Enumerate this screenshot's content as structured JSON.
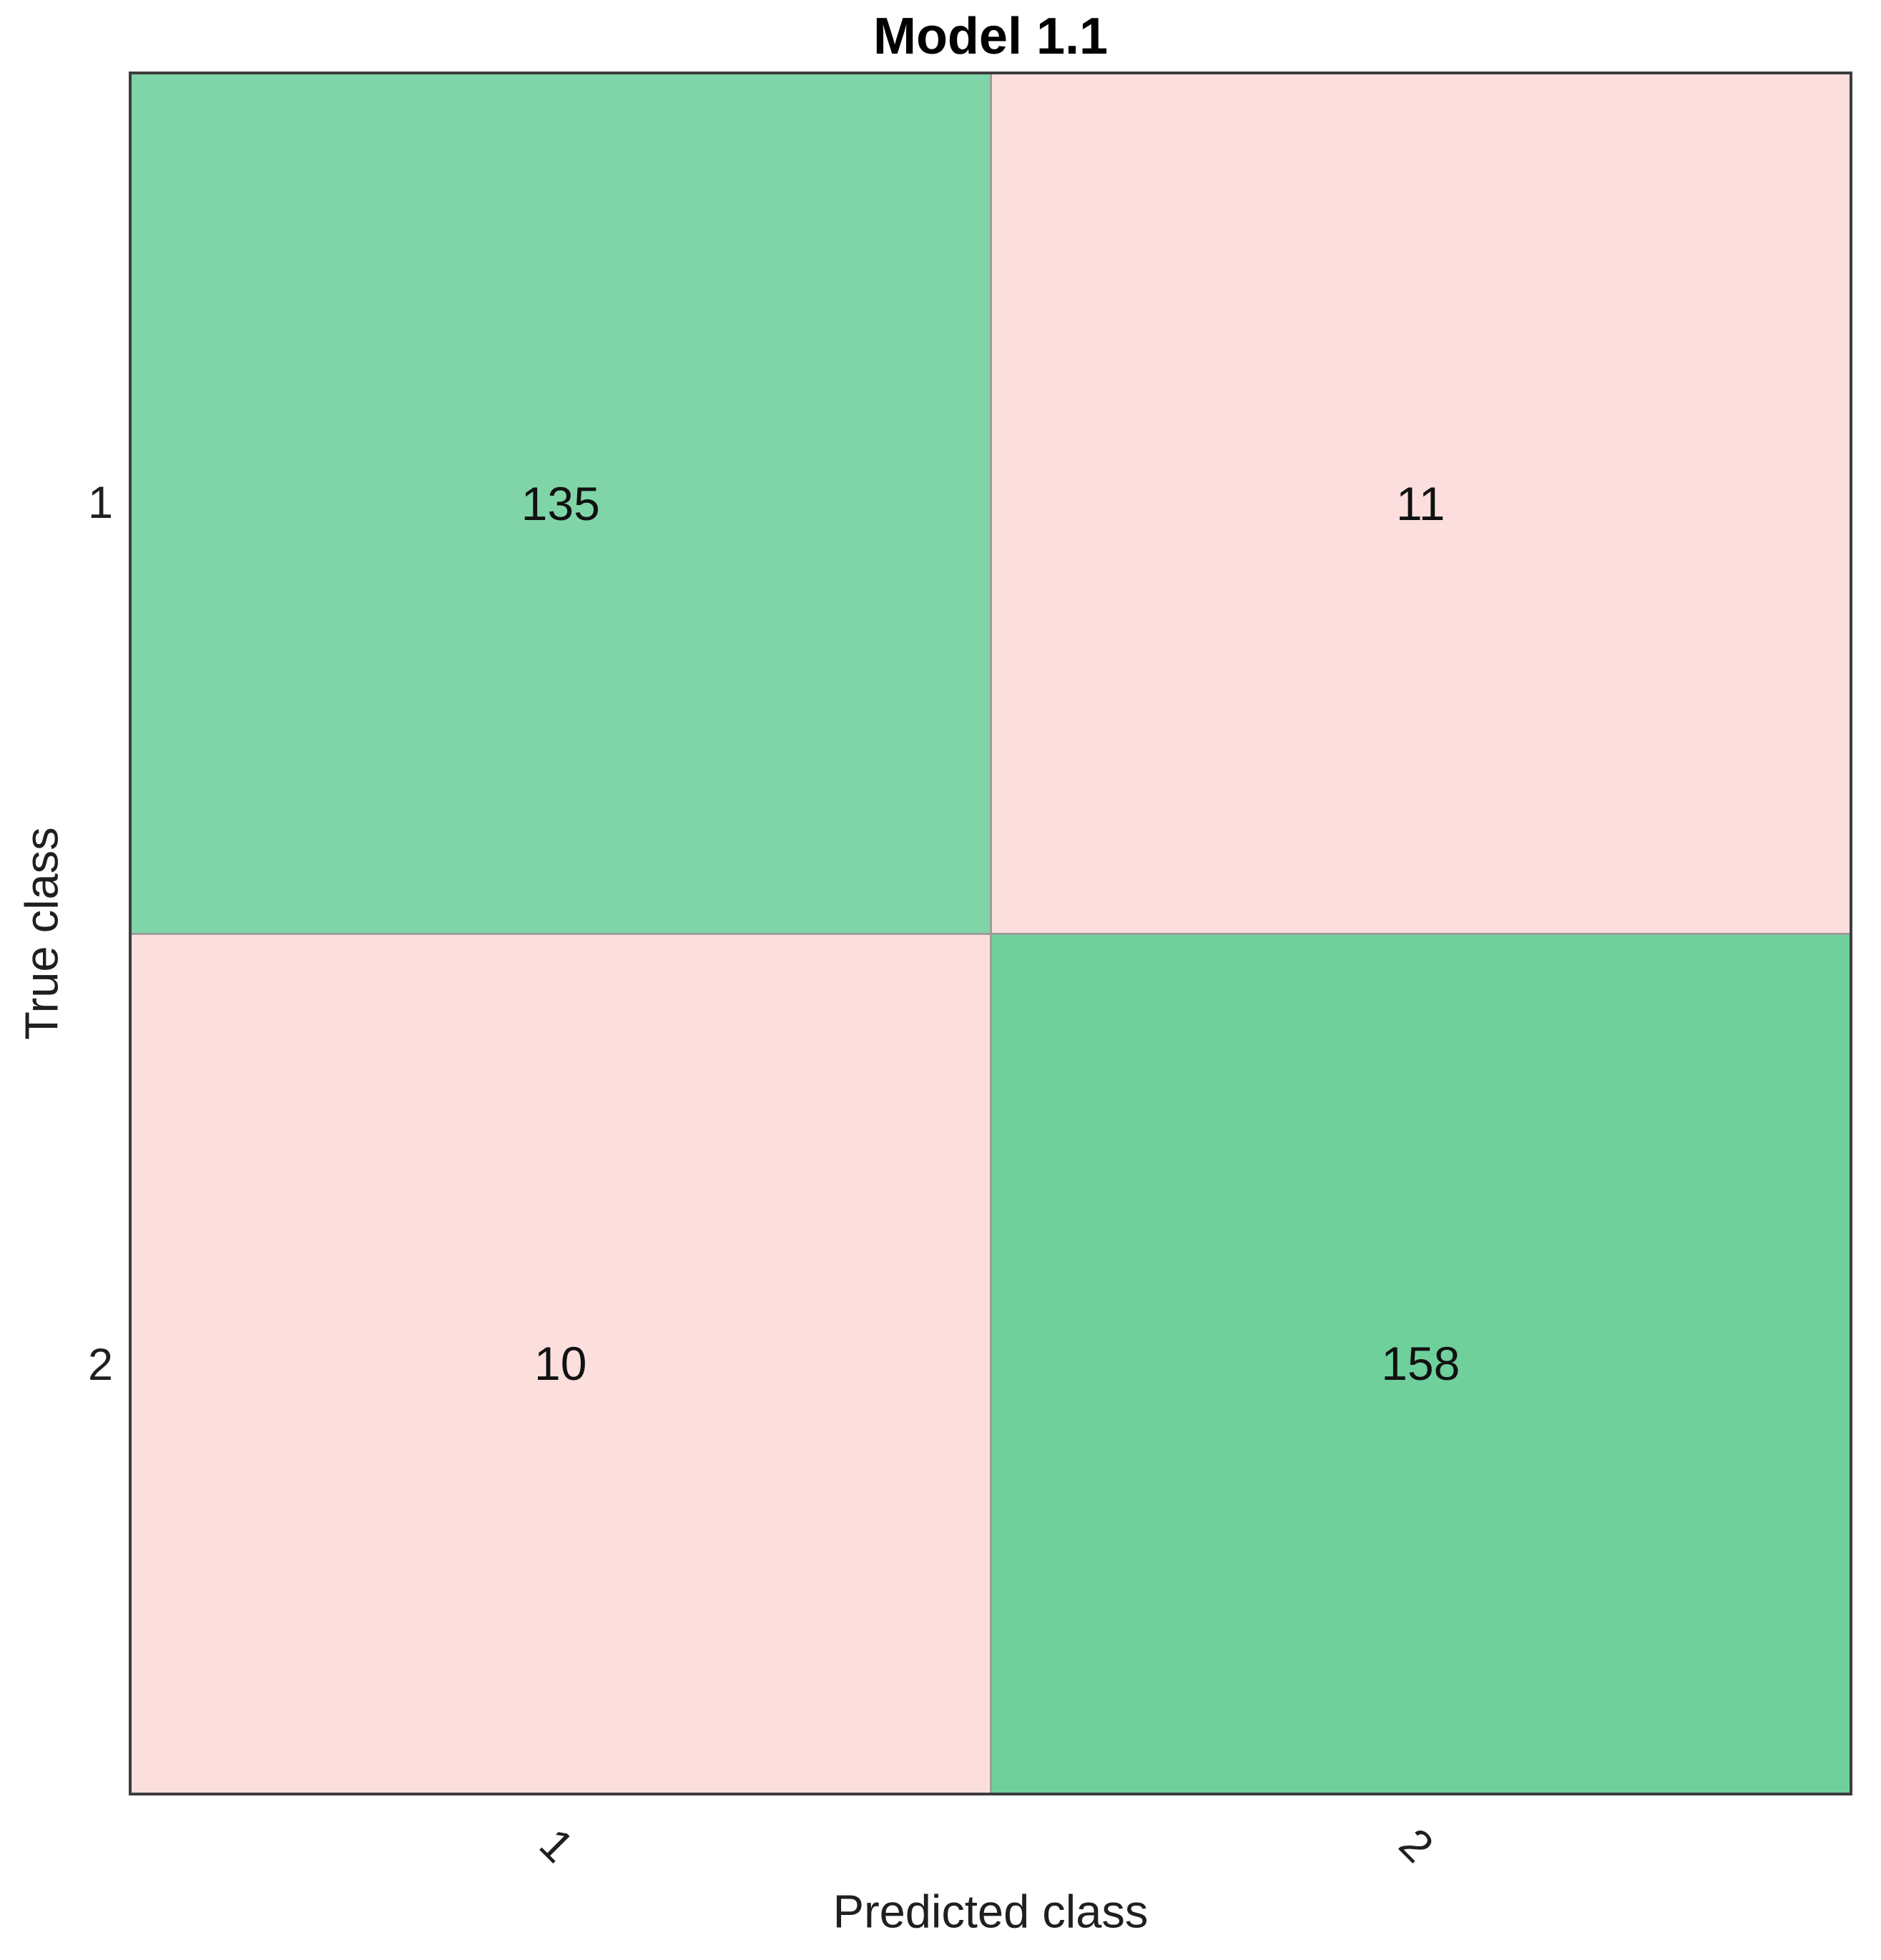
{
  "chart_data": {
    "type": "heatmap",
    "subtype": "confusion-matrix",
    "title": "Model 1.1",
    "xlabel": "Predicted class",
    "ylabel": "True class",
    "x_tick_labels": [
      "1",
      "2"
    ],
    "y_tick_labels": [
      "1",
      "2"
    ],
    "matrix": [
      [
        135,
        11
      ],
      [
        10,
        158
      ]
    ],
    "cell_colors": [
      [
        "#80d5a8",
        "#fcdede"
      ],
      [
        "#fcdfdd",
        "#6fd09c"
      ]
    ],
    "colors": {
      "diagonal_green_light": "#80d5a8",
      "diagonal_green_dark": "#6fd09c",
      "off_diagonal_pink": "#fcdede",
      "grid_line": "#9c9c9c",
      "axis_border": "#3c3c3c"
    },
    "layout": {
      "grid": "2x2",
      "x_tick_rotation_deg": 45,
      "legend": "none"
    }
  }
}
